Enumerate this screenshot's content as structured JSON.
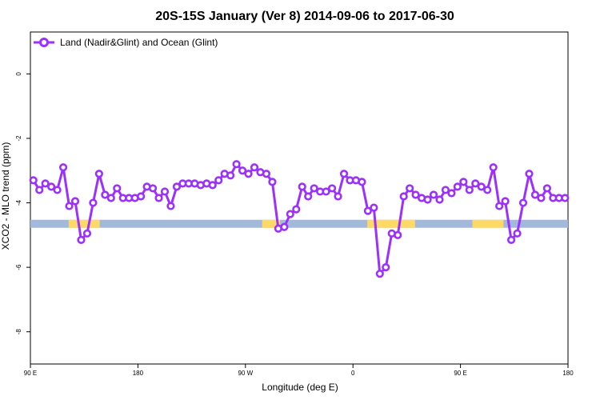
{
  "chart_data": {
    "type": "line",
    "title": "20S-15S January (Ver 8)   2014-09-06 to 2017-06-30",
    "xlabel": "Longitude (deg E)",
    "ylabel": "XCO2 - MLO trend (ppm)",
    "xlim": [
      90,
      540
    ],
    "ylim": [
      -9.0,
      1.3
    ],
    "x_ticks": [
      {
        "value": 90,
        "label": "90 E"
      },
      {
        "value": 180,
        "label": "180"
      },
      {
        "value": 270,
        "label": "90 W"
      },
      {
        "value": 360,
        "label": "0"
      },
      {
        "value": 450,
        "label": "90 E"
      },
      {
        "value": 540,
        "label": "180"
      }
    ],
    "y_ticks": [
      {
        "value": 0,
        "label": "0"
      },
      {
        "value": -2,
        "label": "-2"
      },
      {
        "value": -4,
        "label": "-4"
      },
      {
        "value": -6,
        "label": "-6"
      },
      {
        "value": -8,
        "label": "-8"
      }
    ],
    "grid": false,
    "legend": {
      "position": "top-left"
    },
    "series": [
      {
        "name": "Land (Nadir&Glint) and Ocean (Glint)",
        "color": "#9b30ff",
        "marker": "open-circle",
        "x": [
          92.5,
          97.5,
          102.5,
          107.5,
          112.5,
          117.5,
          122.5,
          127.5,
          132.5,
          137.5,
          142.5,
          147.5,
          152.5,
          157.5,
          162.5,
          167.5,
          172.5,
          177.5,
          182.5,
          187.5,
          192.5,
          197.5,
          202.5,
          207.5,
          212.5,
          217.5,
          222.5,
          227.5,
          232.5,
          237.5,
          242.5,
          247.5,
          252.5,
          257.5,
          262.5,
          267.5,
          272.5,
          277.5,
          282.5,
          287.5,
          292.5,
          297.5,
          302.5,
          307.5,
          312.5,
          317.5,
          322.5,
          327.5,
          332.5,
          337.5,
          342.5,
          347.5,
          352.5,
          357.5,
          362.5,
          367.5,
          372.5,
          377.5,
          382.5,
          387.5,
          392.5,
          397.5,
          402.5,
          407.5,
          412.5,
          417.5,
          422.5,
          427.5,
          432.5,
          437.5,
          442.5,
          447.5,
          452.5,
          457.5,
          462.5,
          467.5,
          472.5,
          477.5,
          482.5,
          487.5,
          492.5,
          497.5,
          502.5,
          507.5,
          512.5,
          517.5,
          522.5,
          527.5,
          532.5,
          537.5
        ],
        "y": [
          -3.3,
          -3.6,
          -3.4,
          -3.5,
          -3.6,
          -2.9,
          -4.1,
          -3.95,
          -5.15,
          -4.95,
          -4.0,
          -3.1,
          -3.75,
          -3.85,
          -3.55,
          -3.85,
          -3.85,
          -3.85,
          -3.8,
          -3.5,
          -3.55,
          -3.85,
          -3.65,
          -4.1,
          -3.5,
          -3.4,
          -3.4,
          -3.4,
          -3.45,
          -3.4,
          -3.45,
          -3.3,
          -3.1,
          -3.15,
          -2.8,
          -3.0,
          -3.1,
          -2.9,
          -3.05,
          -3.1,
          -3.35,
          -4.8,
          -4.75,
          -4.35,
          -4.2,
          -3.5,
          -3.8,
          -3.55,
          -3.65,
          -3.65,
          -3.55,
          -3.8,
          -3.1,
          -3.3,
          -3.3,
          -3.35,
          -4.25,
          -4.15,
          -6.2,
          -6.0,
          -4.95,
          -5.0,
          -3.8,
          -3.55,
          -3.75,
          -3.85,
          -3.9,
          -3.75,
          -3.9,
          -3.6,
          -3.7,
          -3.5,
          -3.35,
          -3.6,
          -3.4,
          -3.5,
          -3.6,
          -2.9,
          -4.1,
          -3.95,
          -5.15,
          -4.95,
          -4.0,
          -3.1,
          -3.75,
          -3.85,
          -3.55,
          -3.85,
          -3.85,
          -3.85
        ]
      }
    ],
    "surface_band": {
      "y": -4.65,
      "land_color": "#ffd966",
      "ocean_color": "#a3b9dc",
      "land_ranges": [
        [
          122,
          148
        ],
        [
          284,
          299
        ],
        [
          372,
          412
        ],
        [
          460,
          486
        ]
      ]
    }
  }
}
